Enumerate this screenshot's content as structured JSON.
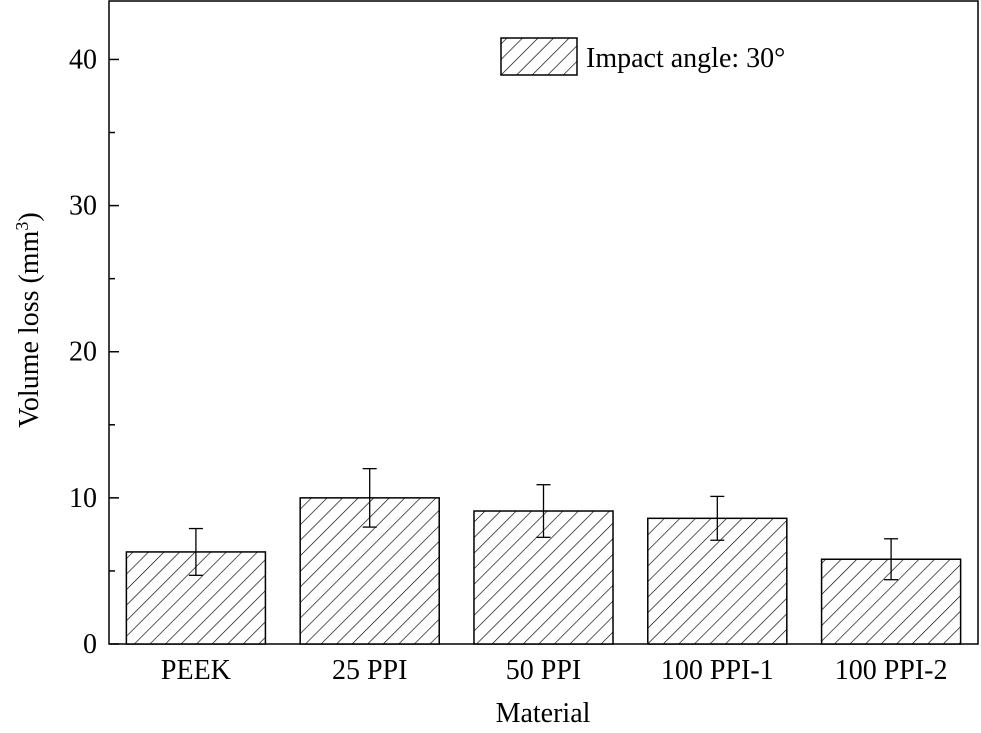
{
  "chart_data": {
    "type": "bar",
    "title": "",
    "xlabel": "Material",
    "ylabel": "Volume loss (mm",
    "ylabel_superscript": "3",
    "ylabel_close": ")",
    "categories": [
      "PEEK",
      "25 PPI",
      "50 PPI",
      "100 PPI-1",
      "100 PPI-2"
    ],
    "series": [
      {
        "name": "Impact angle: 30°",
        "values": [
          6.3,
          10.0,
          9.1,
          8.6,
          5.8
        ],
        "errors": [
          1.6,
          2.0,
          1.8,
          1.5,
          1.4
        ]
      }
    ],
    "ylim": [
      0,
      44
    ],
    "yticks": [
      0,
      10,
      20,
      30,
      40
    ],
    "yticks_minor": [
      5,
      15,
      25,
      35
    ],
    "grid": false,
    "fill_pattern": "diagonal-hatch",
    "legend_position": "top-right"
  }
}
